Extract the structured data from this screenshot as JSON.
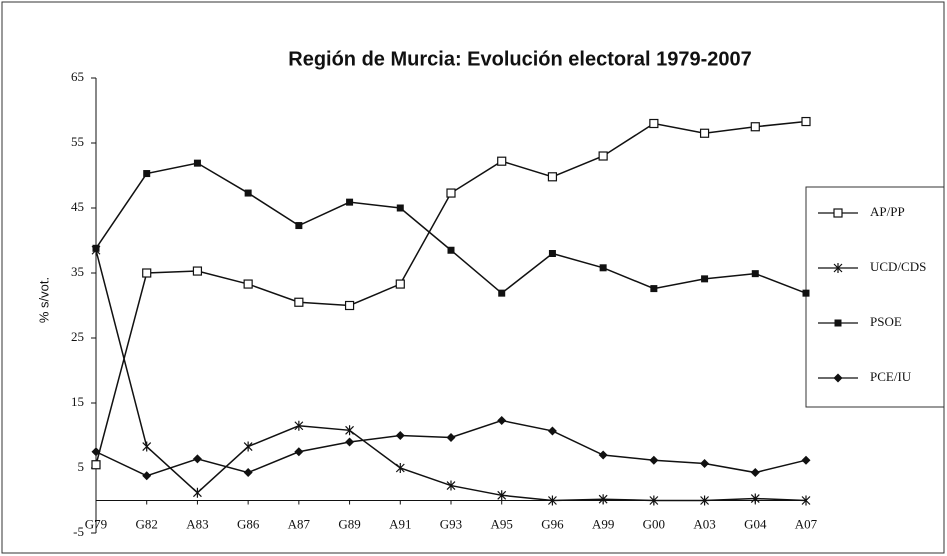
{
  "chart_data": {
    "type": "line",
    "title": "Región de Murcia: Evolución electoral 1979-2007",
    "y_label": "% s/vot.",
    "categories": [
      "G79",
      "G82",
      "A83",
      "G86",
      "A87",
      "G89",
      "A91",
      "G93",
      "A95",
      "G96",
      "A99",
      "G00",
      "A03",
      "G04",
      "A07"
    ],
    "ylim": [
      -5,
      65
    ],
    "yticks": [
      -5,
      5,
      15,
      25,
      35,
      45,
      55,
      65
    ],
    "series": [
      {
        "name": "AP/PP",
        "color": "#111111",
        "marker": "open-square",
        "values": [
          5.5,
          35,
          35.3,
          33.3,
          30.5,
          30,
          33.3,
          47.3,
          52.2,
          49.8,
          53,
          58,
          56.5,
          57.5,
          58.3
        ]
      },
      {
        "name": "UCD/CDS",
        "color": "#111111",
        "marker": "star",
        "values": [
          38.5,
          8.3,
          1.2,
          8.3,
          11.5,
          10.8,
          5,
          2.3,
          0.8,
          0,
          0.2,
          0,
          0,
          0.3,
          0
        ]
      },
      {
        "name": "PSOE",
        "color": "#111111",
        "marker": "filled-square",
        "values": [
          38.8,
          50.3,
          51.9,
          47.3,
          42.3,
          45.9,
          45,
          38.5,
          31.9,
          38,
          35.8,
          32.6,
          34.1,
          34.9,
          31.9
        ]
      },
      {
        "name": "PCE/IU",
        "color": "#111111",
        "marker": "diamond",
        "values": [
          7.5,
          3.8,
          6.4,
          4.3,
          7.5,
          9,
          10,
          9.7,
          12.3,
          10.7,
          7,
          6.2,
          5.7,
          4.3,
          6.2
        ]
      }
    ]
  }
}
